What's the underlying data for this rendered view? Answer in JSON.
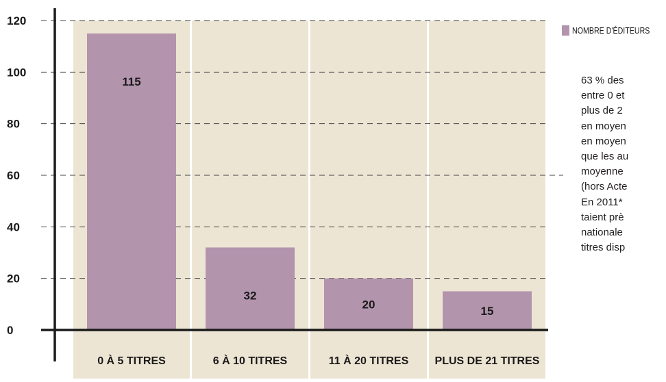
{
  "chart_data": {
    "type": "bar",
    "categories": [
      "0 À 5 TITRES",
      "6 À 10 TITRES",
      "11 À 20 TITRES",
      "PLUS DE 21 TITRES"
    ],
    "series": [
      {
        "name": "NOMBRE D'ÉDITEURS",
        "values": [
          115,
          32,
          20,
          15
        ],
        "color": "#b394ad"
      }
    ],
    "data_labels": [
      "115",
      "32",
      "20",
      "15"
    ],
    "ylim": [
      0,
      120
    ],
    "yticks": [
      0,
      20,
      40,
      60,
      80,
      100,
      120
    ],
    "grid": true,
    "legend_position": "top-right",
    "colors": {
      "bar": "#b394ad",
      "panel": "#ede5d3",
      "axis": "#1a1a1a"
    }
  },
  "side_text": {
    "lines": [
      "63 % des",
      "entre 0 et",
      "plus de 2",
      "en moyen",
      "en moyen",
      "que les au",
      "moyenne",
      "(hors Acte",
      "En 2011*",
      "taient prè",
      "nationale",
      "titres disp"
    ]
  }
}
